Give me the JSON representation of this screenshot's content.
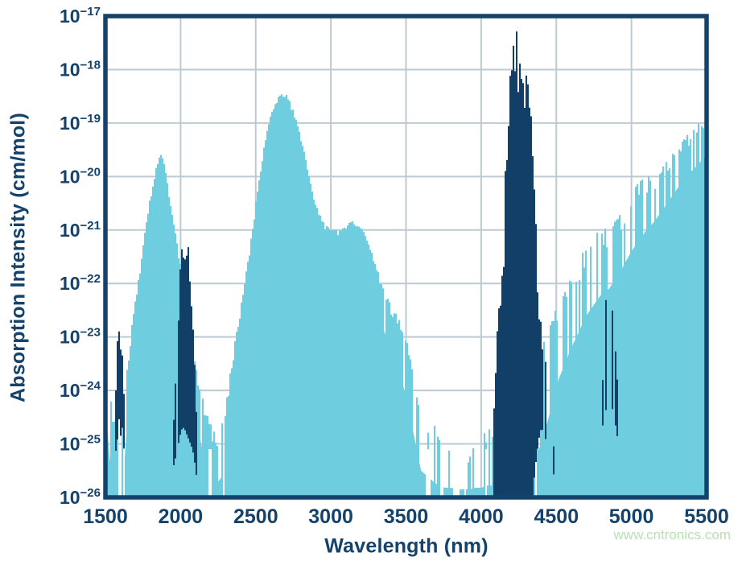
{
  "chart_data": {
    "type": "area",
    "title": "",
    "xlabel": "Wavelength (nm)",
    "ylabel": "Absorption Intensity (cm/mol)",
    "x_range": [
      1500,
      5500
    ],
    "x_ticks": [
      1500,
      2000,
      2500,
      3000,
      3500,
      4000,
      4500,
      5000,
      5500
    ],
    "y_tick_exponents": [
      -17,
      -18,
      -19,
      -20,
      -21,
      -22,
      -23,
      -24,
      -25,
      -26
    ],
    "y_log_range": [
      -26,
      -17
    ],
    "grid": true,
    "legend_position": "none",
    "colors": {
      "light_series": "#6fcde0",
      "dark_series": "#123f68",
      "axis": "#14426b",
      "grid": "#bccad3",
      "background": "#ffffff",
      "watermark": "#b6e2b2"
    },
    "series": [
      {
        "name": "continuum-spectrum-light-blue",
        "color_key": "light_series",
        "point_format": [
          "wavelength_nm",
          "top_log10",
          "solid_fill_log10",
          "line_density"
        ],
        "envelope_points": [
          [
            1500,
            -22.9,
            -24.2,
            0.85
          ],
          [
            1515,
            -23.3,
            -24.8,
            0.75
          ],
          [
            1530,
            -23.9,
            -25.3,
            0.65
          ],
          [
            1550,
            -24.5,
            -25.6,
            0.6
          ],
          [
            1575,
            -24.7,
            -25.7,
            0.55
          ],
          [
            1600,
            -24.4,
            -25.7,
            0.62
          ],
          [
            1625,
            -24.0,
            -25.4,
            0.75
          ],
          [
            1650,
            -23.4,
            -24.4,
            1
          ],
          [
            1680,
            -22.7,
            -23.6,
            1
          ],
          [
            1710,
            -22.1,
            -22.9,
            1
          ],
          [
            1740,
            -21.5,
            -22.2,
            1
          ],
          [
            1770,
            -20.9,
            -21.6,
            1
          ],
          [
            1800,
            -20.35,
            -21.0,
            1
          ],
          [
            1830,
            -19.9,
            -20.5,
            1
          ],
          [
            1855,
            -19.6,
            -20.15,
            1
          ],
          [
            1870,
            -19.5,
            -20.05,
            1
          ],
          [
            1890,
            -19.75,
            -20.3,
            1
          ],
          [
            1910,
            -20.05,
            -20.6,
            1
          ],
          [
            1935,
            -20.5,
            -21.1,
            1
          ],
          [
            1960,
            -20.95,
            -21.6,
            1
          ],
          [
            1985,
            -21.4,
            -22.1,
            1
          ],
          [
            2010,
            -21.85,
            -22.6,
            1
          ],
          [
            2040,
            -22.35,
            -23.2,
            1
          ],
          [
            2070,
            -22.9,
            -23.8,
            0.95
          ],
          [
            2100,
            -23.4,
            -24.4,
            0.9
          ],
          [
            2130,
            -23.9,
            -24.9,
            0.85
          ],
          [
            2160,
            -24.3,
            -25.3,
            0.8
          ],
          [
            2190,
            -24.55,
            -25.5,
            0.72
          ],
          [
            2220,
            -24.75,
            -25.65,
            0.65
          ],
          [
            2250,
            -24.85,
            -25.7,
            0.62
          ],
          [
            2280,
            -24.55,
            -25.6,
            0.68
          ],
          [
            2310,
            -24.05,
            -25.1,
            0.8
          ],
          [
            2340,
            -23.45,
            -24.5,
            0.95
          ],
          [
            2370,
            -22.9,
            -23.9,
            1
          ],
          [
            2400,
            -22.4,
            -23.3,
            1
          ],
          [
            2430,
            -21.9,
            -22.7,
            1
          ],
          [
            2460,
            -21.35,
            -22.1,
            1
          ],
          [
            2490,
            -20.7,
            -21.4,
            1
          ],
          [
            2520,
            -20.05,
            -20.7,
            1
          ],
          [
            2550,
            -19.5,
            -20.1,
            1
          ],
          [
            2580,
            -19.05,
            -19.65,
            1
          ],
          [
            2610,
            -18.75,
            -19.3,
            1
          ],
          [
            2640,
            -18.55,
            -19.1,
            1
          ],
          [
            2670,
            -18.45,
            -19.0,
            1
          ],
          [
            2700,
            -18.42,
            -18.97,
            1
          ],
          [
            2730,
            -18.6,
            -19.15,
            1
          ],
          [
            2760,
            -18.85,
            -19.45,
            1
          ],
          [
            2790,
            -19.15,
            -19.75,
            1
          ],
          [
            2820,
            -19.5,
            -20.1,
            1
          ],
          [
            2850,
            -19.9,
            -20.5,
            1
          ],
          [
            2880,
            -20.3,
            -20.9,
            1
          ],
          [
            2910,
            -20.6,
            -21.2,
            1
          ],
          [
            2950,
            -20.85,
            -21.45,
            1
          ],
          [
            3000,
            -21.0,
            -21.6,
            1
          ],
          [
            3050,
            -21.0,
            -21.6,
            1
          ],
          [
            3100,
            -20.9,
            -21.5,
            1
          ],
          [
            3150,
            -20.82,
            -21.42,
            1
          ],
          [
            3200,
            -20.92,
            -21.52,
            1
          ],
          [
            3250,
            -21.2,
            -21.85,
            1
          ],
          [
            3300,
            -21.65,
            -22.35,
            1
          ],
          [
            3350,
            -22.1,
            -22.85,
            0.98
          ],
          [
            3400,
            -22.4,
            -23.25,
            0.95
          ],
          [
            3450,
            -22.65,
            -23.6,
            0.9
          ],
          [
            3500,
            -23.0,
            -24.1,
            0.8
          ],
          [
            3550,
            -23.5,
            -24.8,
            0.65
          ],
          [
            3600,
            -24.2,
            -25.5,
            0.52
          ],
          [
            3640,
            -24.0,
            -25.6,
            0.5
          ],
          [
            3680,
            -24.5,
            -25.7,
            0.42
          ],
          [
            3720,
            -24.9,
            -25.78,
            0.36
          ],
          [
            3760,
            -25.2,
            -25.82,
            0.3
          ],
          [
            3800,
            -25.0,
            -25.82,
            0.32
          ],
          [
            3840,
            -25.35,
            -25.85,
            0.27
          ],
          [
            3880,
            -25.1,
            -25.85,
            0.3
          ],
          [
            3920,
            -25.3,
            -25.85,
            0.28
          ],
          [
            3960,
            -24.85,
            -25.82,
            0.36
          ],
          [
            4000,
            -25.0,
            -25.82,
            0.35
          ],
          [
            4040,
            -24.55,
            -25.78,
            0.42
          ],
          [
            4080,
            -24.7,
            -25.78,
            0.42
          ],
          [
            4120,
            -24.45,
            -25.75,
            0.46
          ],
          [
            4160,
            -24.2,
            -25.7,
            0.48
          ],
          [
            4200,
            -24.05,
            -25.7,
            0.48
          ],
          [
            4250,
            -23.9,
            -25.6,
            0.5
          ],
          [
            4300,
            -23.7,
            -25.5,
            0.52
          ],
          [
            4350,
            -23.5,
            -25.3,
            0.55
          ],
          [
            4400,
            -23.2,
            -25.0,
            0.58
          ],
          [
            4450,
            -22.85,
            -24.5,
            0.6
          ],
          [
            4500,
            -22.45,
            -23.9,
            0.6
          ],
          [
            4550,
            -22.15,
            -23.55,
            0.6
          ],
          [
            4600,
            -21.85,
            -23.2,
            0.62
          ],
          [
            4650,
            -21.55,
            -22.9,
            0.62
          ],
          [
            4700,
            -21.3,
            -22.6,
            0.63
          ],
          [
            4750,
            -21.1,
            -22.4,
            0.64
          ],
          [
            4800,
            -20.95,
            -22.2,
            0.65
          ],
          [
            4850,
            -21.0,
            -22.1,
            0.65
          ],
          [
            4900,
            -20.8,
            -21.9,
            0.66
          ],
          [
            4950,
            -20.55,
            -21.65,
            0.66
          ],
          [
            5000,
            -20.3,
            -21.4,
            0.68
          ],
          [
            5050,
            -20.1,
            -21.2,
            0.68
          ],
          [
            5100,
            -19.95,
            -21.0,
            0.7
          ],
          [
            5150,
            -20.05,
            -20.85,
            0.7
          ],
          [
            5200,
            -19.85,
            -20.65,
            0.7
          ],
          [
            5250,
            -19.65,
            -20.45,
            0.72
          ],
          [
            5300,
            -19.5,
            -20.25,
            0.72
          ],
          [
            5350,
            -19.3,
            -20.05,
            0.74
          ],
          [
            5400,
            -19.12,
            -19.9,
            0.75
          ],
          [
            5450,
            -19.0,
            -19.75,
            0.75
          ],
          [
            5500,
            -19.15,
            -19.6,
            0.8
          ]
        ]
      },
      {
        "name": "band-spectrum-dark-blue",
        "color_key": "dark_series",
        "point_format": [
          "wavelength_nm",
          "top_log10",
          "bottom_log10",
          "line_density"
        ],
        "bands": [
          {
            "points": [
              [
                1565,
                -24.6,
                -25.3,
                0.7
              ],
              [
                1573,
                -23.4,
                -25.0,
                0.85
              ],
              [
                1582,
                -22.85,
                -24.9,
                0.9
              ],
              [
                1592,
                -22.9,
                -24.5,
                0.9
              ],
              [
                1600,
                -23.0,
                -24.9,
                0.9
              ],
              [
                1610,
                -23.2,
                -24.6,
                0.85
              ],
              [
                1620,
                -23.7,
                -25.0,
                0.8
              ],
              [
                1632,
                -24.7,
                -25.3,
                0.6
              ]
            ]
          },
          {
            "points": [
              [
                1955,
                -24.5,
                -25.4,
                0.7
              ],
              [
                1972,
                -23.5,
                -25.2,
                0.8
              ],
              [
                1986,
                -22.5,
                -25.0,
                0.9
              ],
              [
                2000,
                -21.3,
                -24.8,
                0.95
              ],
              [
                2012,
                -20.75,
                -24.7,
                1
              ],
              [
                2024,
                -21.5,
                -24.7,
                1
              ],
              [
                2038,
                -21.1,
                -24.8,
                1
              ],
              [
                2052,
                -21.25,
                -24.9,
                1
              ],
              [
                2066,
                -21.7,
                -25.0,
                0.95
              ],
              [
                2080,
                -22.4,
                -25.1,
                0.9
              ],
              [
                2092,
                -23.3,
                -25.3,
                0.8
              ],
              [
                2106,
                -24.4,
                -25.6,
                0.6
              ]
            ]
          },
          {
            "points": [
              [
                4060,
                -24.9,
                -26,
                0.55
              ],
              [
                4085,
                -24.0,
                -26,
                0.6
              ],
              [
                4105,
                -23.0,
                -26,
                0.65
              ],
              [
                4125,
                -22.0,
                -26,
                0.7
              ],
              [
                4145,
                -20.9,
                -26,
                0.8
              ],
              [
                4160,
                -19.8,
                -26,
                0.9
              ],
              [
                4175,
                -18.9,
                -26,
                1
              ],
              [
                4195,
                -18.0,
                -26,
                1
              ],
              [
                4215,
                -17.5,
                -26,
                1
              ],
              [
                4235,
                -17.28,
                -26,
                1
              ],
              [
                4250,
                -17.25,
                -26,
                1
              ],
              [
                4262,
                -17.6,
                -26,
                1
              ],
              [
                4275,
                -17.3,
                -26,
                1
              ],
              [
                4290,
                -17.45,
                -26,
                1
              ],
              [
                4305,
                -17.78,
                -26,
                1
              ],
              [
                4318,
                -18.2,
                -26,
                1
              ],
              [
                4330,
                -18.7,
                -26,
                1
              ],
              [
                4342,
                -19.4,
                -26,
                1
              ],
              [
                4355,
                -20.3,
                -25.6,
                0.95
              ],
              [
                4370,
                -21.2,
                -25.2,
                0.9
              ],
              [
                4385,
                -22.0,
                -24.9,
                0.85
              ],
              [
                4400,
                -22.6,
                -24.7,
                0.8
              ],
              [
                4420,
                -23.2,
                -24.8,
                0.7
              ],
              [
                4445,
                -23.9,
                -25.1,
                0.6
              ],
              [
                4470,
                -24.5,
                -25.4,
                0.5
              ],
              [
                4500,
                -25.1,
                -25.8,
                0.4
              ]
            ]
          },
          {
            "points": [
              [
                4806,
                -23.9,
                -24.7,
                0.5
              ],
              [
                4820,
                -22.9,
                -24.5,
                0.6
              ],
              [
                4836,
                -22.0,
                -24.3,
                0.7
              ],
              [
                4850,
                -21.65,
                -24.1,
                0.8
              ],
              [
                4863,
                -21.85,
                -24.2,
                0.75
              ],
              [
                4877,
                -22.3,
                -24.4,
                0.65
              ],
              [
                4892,
                -23.0,
                -24.6,
                0.55
              ],
              [
                4908,
                -23.8,
                -24.9,
                0.45
              ]
            ]
          }
        ]
      }
    ]
  },
  "watermark": {
    "text": "www.cntronics.com"
  }
}
